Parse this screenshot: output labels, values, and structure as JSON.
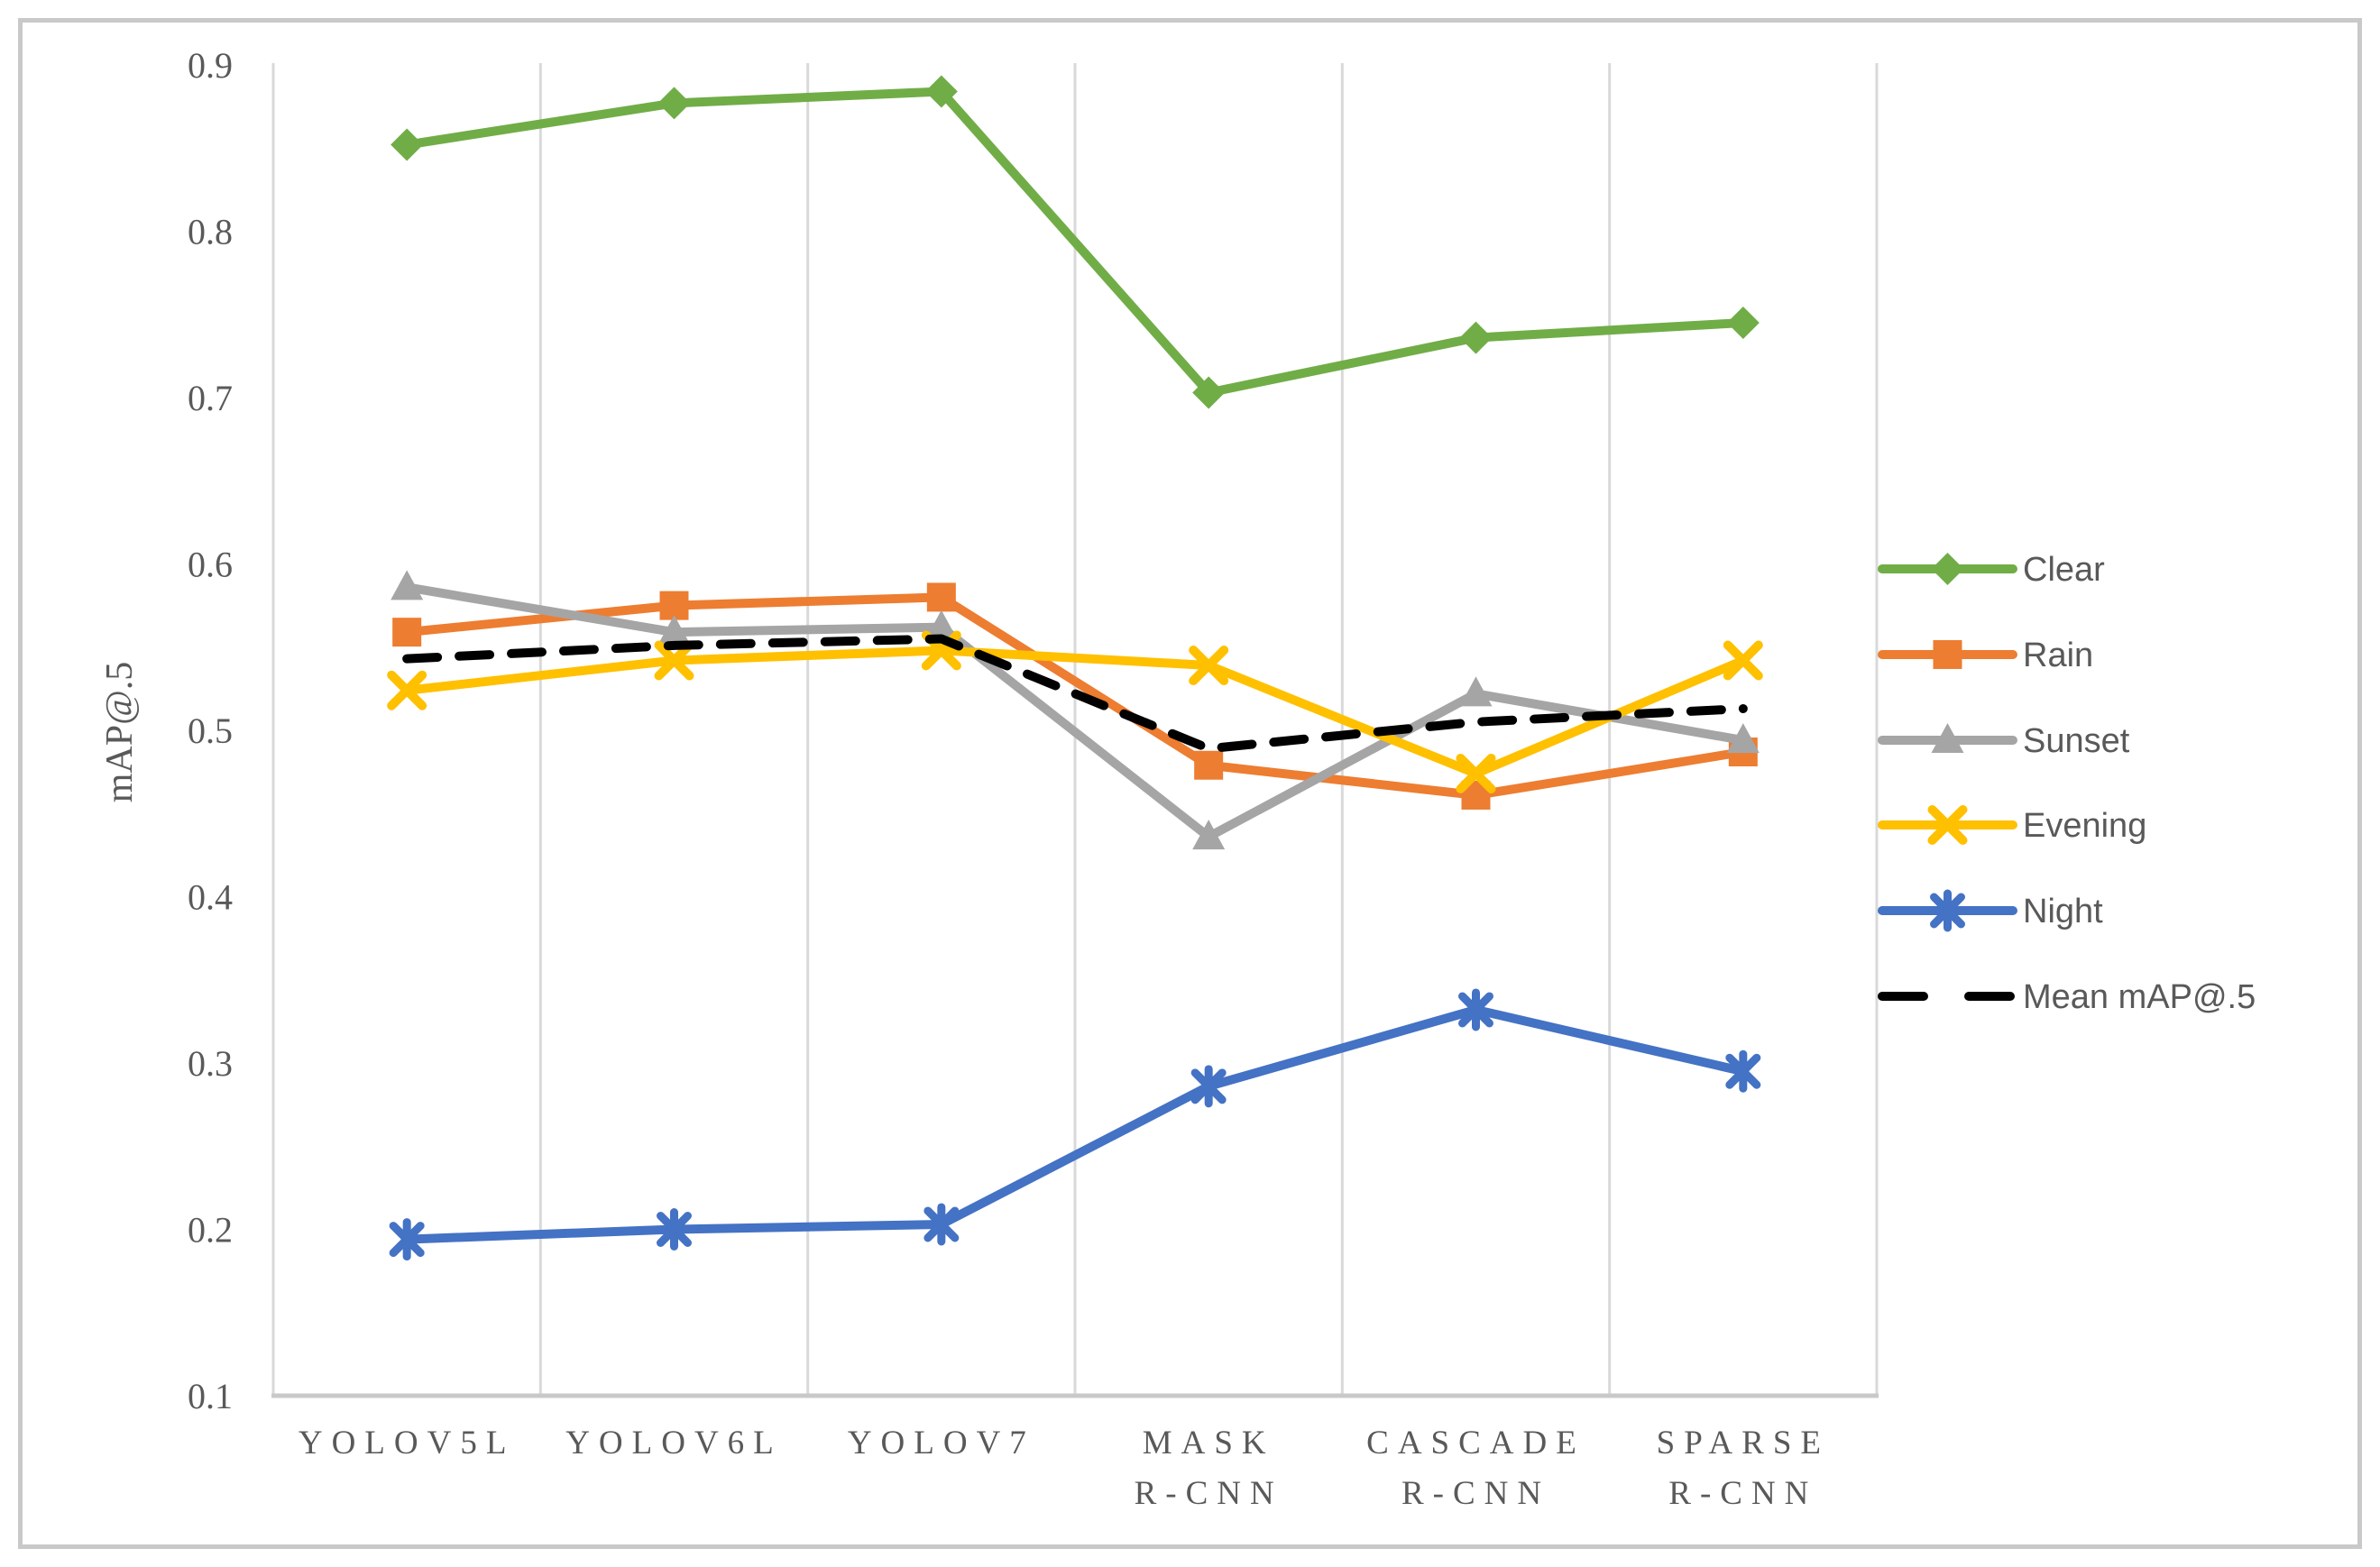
{
  "chart_data": {
    "type": "line",
    "title": "",
    "xlabel": "",
    "ylabel": "mAP@.5",
    "ylim": [
      0.1,
      0.9
    ],
    "ytick_step": 0.1,
    "yticks": [
      0.9,
      0.8,
      0.7,
      0.6,
      0.5,
      0.4,
      0.3,
      0.2,
      0.1
    ],
    "grid": "vertical-only",
    "legend_position": "right",
    "categories": [
      [
        "YOLOV5L"
      ],
      [
        "YOLOV6L"
      ],
      [
        "YOLOV7"
      ],
      [
        "MASK",
        "R-CNN"
      ],
      [
        "CASCADE",
        "R-CNN"
      ],
      [
        "SPARSE",
        "R-CNN"
      ]
    ],
    "series": [
      {
        "name": "Clear",
        "color": "#70AD47",
        "marker": "diamond",
        "dash": "solid",
        "values": [
          0.852,
          0.877,
          0.884,
          0.703,
          0.736,
          0.745
        ]
      },
      {
        "name": "Rain",
        "color": "#ED7D31",
        "marker": "square",
        "dash": "solid",
        "values": [
          0.559,
          0.575,
          0.58,
          0.479,
          0.461,
          0.487
        ]
      },
      {
        "name": "Sunset",
        "color": "#A5A5A5",
        "marker": "triangle",
        "dash": "solid",
        "values": [
          0.586,
          0.559,
          0.562,
          0.436,
          0.522,
          0.494
        ]
      },
      {
        "name": "Evening",
        "color": "#FFC000",
        "marker": "x",
        "dash": "solid",
        "values": [
          0.524,
          0.542,
          0.548,
          0.539,
          0.474,
          0.542
        ]
      },
      {
        "name": "Night",
        "color": "#4472C4",
        "marker": "asterisk",
        "dash": "solid",
        "values": [
          0.194,
          0.2,
          0.203,
          0.286,
          0.332,
          0.295
        ]
      },
      {
        "name": "Mean mAP@.5",
        "color": "#000000",
        "marker": "none",
        "dash": "dashed",
        "values": [
          0.543,
          0.551,
          0.555,
          0.489,
          0.505,
          0.513
        ]
      }
    ]
  },
  "colors": {
    "gridline": "#D9D9D9",
    "axis_line": "#C9C9C9",
    "tick_label": "#595959",
    "legend_label": "#595959",
    "frame_border": "#C9C9C9",
    "background": "#FFFFFF"
  }
}
